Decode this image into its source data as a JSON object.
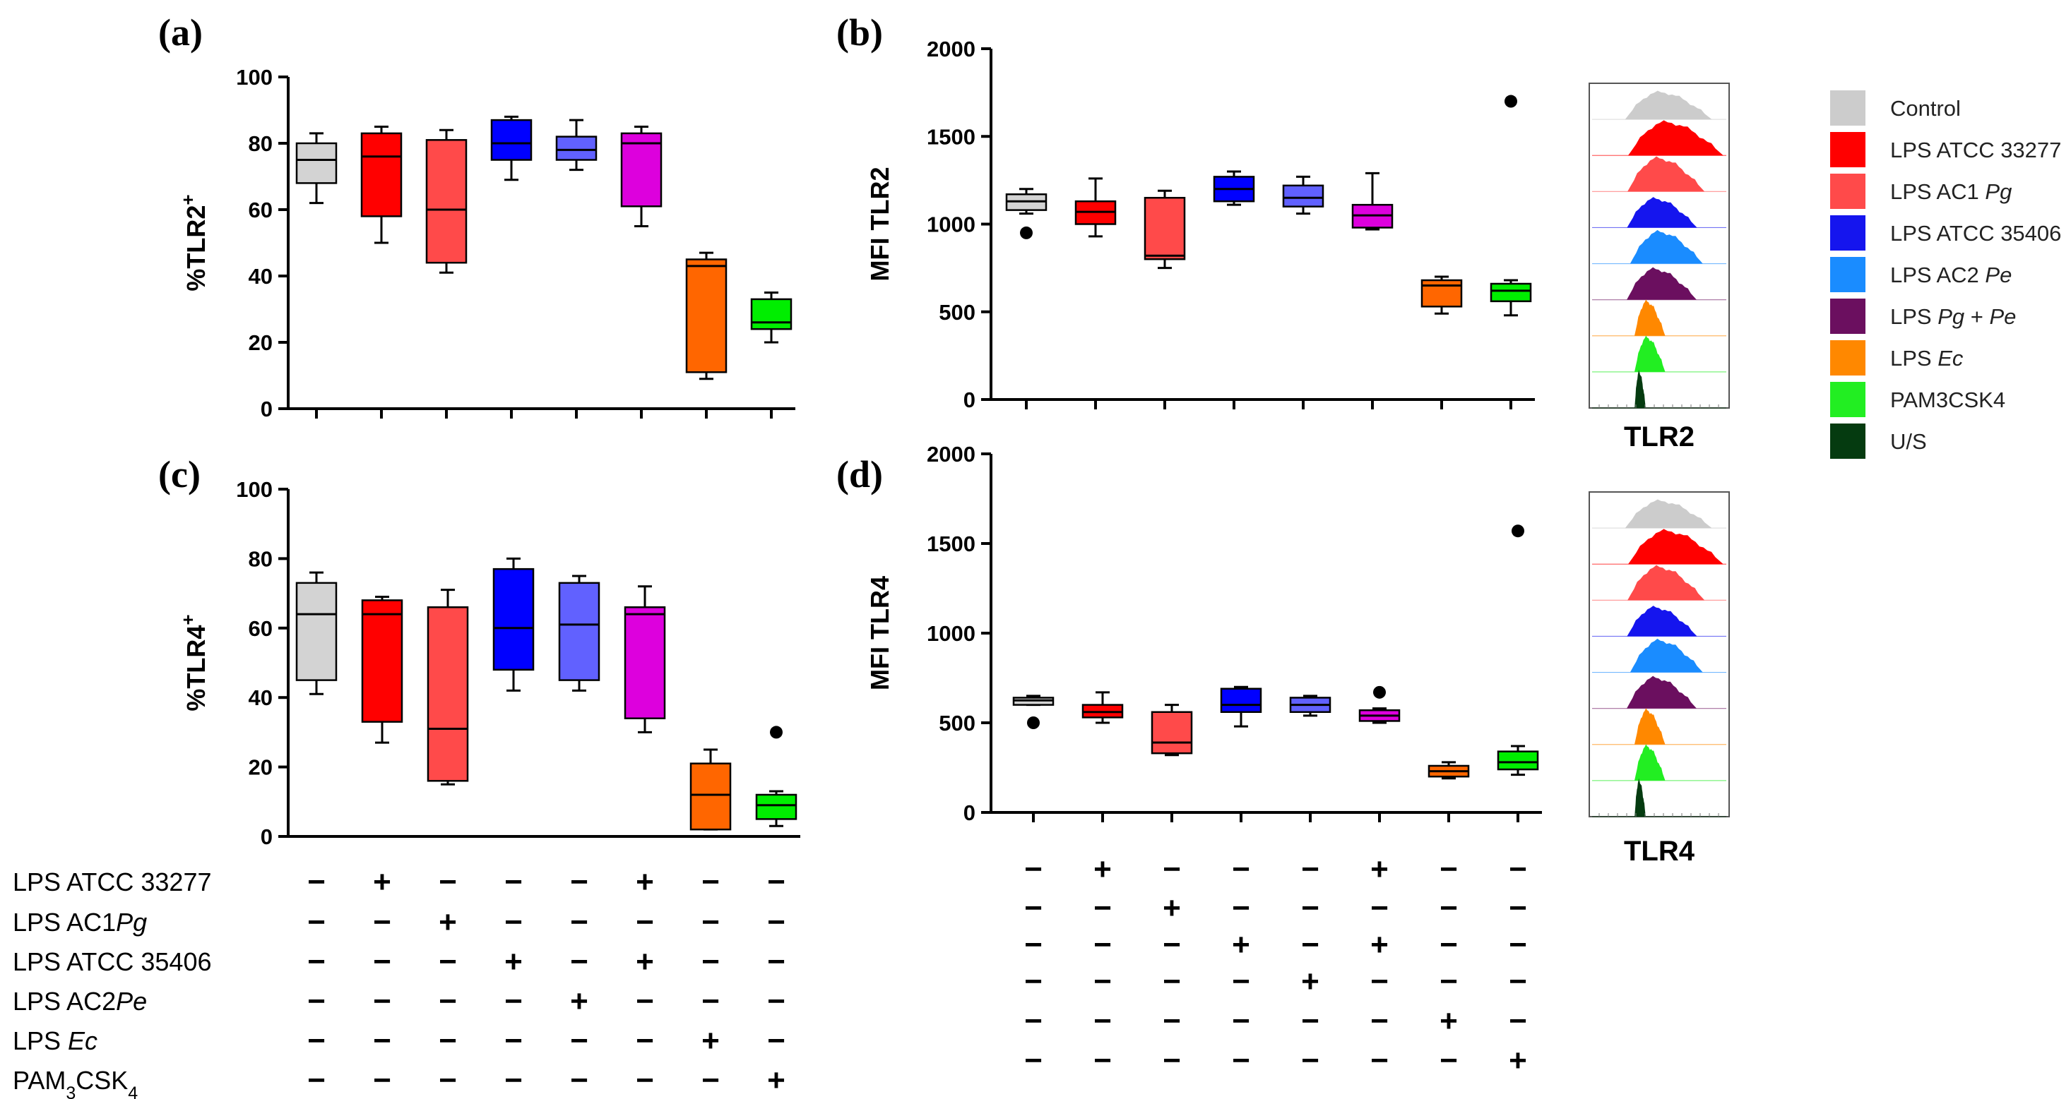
{
  "colors": {
    "control": "#d3d3d3",
    "lps_atcc_33277": "#ff0000",
    "lps_ac1_pg": "#ff4a4a",
    "lps_atcc_35406": "#0000ff",
    "lps_ac2_pe": "#6161ff",
    "lps_pg_pe": "#dd00dd",
    "lps_ec": "#ff6600",
    "pam3csk4": "#00ee00"
  },
  "chart_data": [
    {
      "id": "a",
      "panel_label": "(a)",
      "type": "box",
      "ylabel_main": "%TLR2",
      "ylabel_sup": "+",
      "ylim": [
        0,
        100
      ],
      "yticks": [
        0,
        20,
        40,
        60,
        80,
        100
      ],
      "series": [
        {
          "color": "#d3d3d3",
          "whisker_low": 62,
          "q1": 68,
          "median": 75,
          "q3": 80,
          "whisker_high": 83
        },
        {
          "color": "#ff0000",
          "whisker_low": 50,
          "q1": 58,
          "median": 76,
          "q3": 83,
          "whisker_high": 85
        },
        {
          "color": "#ff4a4a",
          "whisker_low": 41,
          "q1": 44,
          "median": 60,
          "q3": 81,
          "whisker_high": 84
        },
        {
          "color": "#0000ff",
          "whisker_low": 69,
          "q1": 75,
          "median": 80,
          "q3": 87,
          "whisker_high": 88
        },
        {
          "color": "#6161ff",
          "whisker_low": 72,
          "q1": 75,
          "median": 78,
          "q3": 82,
          "whisker_high": 87
        },
        {
          "color": "#dd00dd",
          "whisker_low": 55,
          "q1": 61,
          "median": 80,
          "q3": 83,
          "whisker_high": 85
        },
        {
          "color": "#ff6600",
          "whisker_low": 9,
          "q1": 11,
          "median": 43,
          "q3": 45,
          "whisker_high": 47
        },
        {
          "color": "#00ee00",
          "whisker_low": 20,
          "q1": 24,
          "median": 26,
          "q3": 33,
          "whisker_high": 35
        }
      ]
    },
    {
      "id": "b",
      "panel_label": "(b)",
      "type": "box",
      "ylabel_main": "MFI TLR2",
      "ylabel_sup": "",
      "ylim": [
        0,
        2000
      ],
      "yticks": [
        0,
        500,
        1000,
        1500,
        2000
      ],
      "series": [
        {
          "color": "#d3d3d3",
          "whisker_low": 1060,
          "q1": 1080,
          "median": 1130,
          "q3": 1170,
          "whisker_high": 1200,
          "outliers": [
            950
          ]
        },
        {
          "color": "#ff0000",
          "whisker_low": 930,
          "q1": 1000,
          "median": 1070,
          "q3": 1130,
          "whisker_high": 1260
        },
        {
          "color": "#ff4a4a",
          "whisker_low": 750,
          "q1": 800,
          "median": 820,
          "q3": 1150,
          "whisker_high": 1190
        },
        {
          "color": "#0000ff",
          "whisker_low": 1110,
          "q1": 1130,
          "median": 1200,
          "q3": 1270,
          "whisker_high": 1300
        },
        {
          "color": "#6161ff",
          "whisker_low": 1060,
          "q1": 1100,
          "median": 1150,
          "q3": 1220,
          "whisker_high": 1270
        },
        {
          "color": "#dd00dd",
          "whisker_low": 970,
          "q1": 980,
          "median": 1050,
          "q3": 1110,
          "whisker_high": 1290
        },
        {
          "color": "#ff6600",
          "whisker_low": 490,
          "q1": 530,
          "median": 650,
          "q3": 680,
          "whisker_high": 700
        },
        {
          "color": "#00ee00",
          "whisker_low": 480,
          "q1": 560,
          "median": 620,
          "q3": 660,
          "whisker_high": 680,
          "outliers": [
            1700
          ]
        }
      ]
    },
    {
      "id": "c",
      "panel_label": "(c)",
      "type": "box",
      "ylabel_main": "%TLR4",
      "ylabel_sup": "+",
      "ylim": [
        0,
        100
      ],
      "yticks": [
        0,
        20,
        40,
        60,
        80,
        100
      ],
      "series": [
        {
          "color": "#d3d3d3",
          "whisker_low": 41,
          "q1": 45,
          "median": 64,
          "q3": 73,
          "whisker_high": 76
        },
        {
          "color": "#ff0000",
          "whisker_low": 27,
          "q1": 33,
          "median": 64,
          "q3": 68,
          "whisker_high": 69
        },
        {
          "color": "#ff4a4a",
          "whisker_low": 15,
          "q1": 16,
          "median": 31,
          "q3": 66,
          "whisker_high": 71
        },
        {
          "color": "#0000ff",
          "whisker_low": 42,
          "q1": 48,
          "median": 60,
          "q3": 77,
          "whisker_high": 80
        },
        {
          "color": "#6161ff",
          "whisker_low": 42,
          "q1": 45,
          "median": 61,
          "q3": 73,
          "whisker_high": 75
        },
        {
          "color": "#dd00dd",
          "whisker_low": 30,
          "q1": 34,
          "median": 64,
          "q3": 66,
          "whisker_high": 72
        },
        {
          "color": "#ff6600",
          "whisker_low": 2,
          "q1": 2,
          "median": 12,
          "q3": 21,
          "whisker_high": 25
        },
        {
          "color": "#00ee00",
          "whisker_low": 3,
          "q1": 5,
          "median": 9,
          "q3": 12,
          "whisker_high": 13,
          "outliers": [
            30
          ]
        }
      ]
    },
    {
      "id": "d",
      "panel_label": "(d)",
      "type": "box",
      "ylabel_main": "MFI TLR4",
      "ylabel_sup": "",
      "ylim": [
        0,
        2000
      ],
      "yticks": [
        0,
        500,
        1000,
        1500,
        2000
      ],
      "series": [
        {
          "color": "#d3d3d3",
          "whisker_low": 600,
          "q1": 600,
          "median": 625,
          "q3": 640,
          "whisker_high": 650,
          "outliers": [
            500
          ]
        },
        {
          "color": "#ff0000",
          "whisker_low": 500,
          "q1": 530,
          "median": 560,
          "q3": 600,
          "whisker_high": 670
        },
        {
          "color": "#ff4a4a",
          "whisker_low": 320,
          "q1": 330,
          "median": 390,
          "q3": 560,
          "whisker_high": 600
        },
        {
          "color": "#0000ff",
          "whisker_low": 480,
          "q1": 560,
          "median": 600,
          "q3": 690,
          "whisker_high": 700
        },
        {
          "color": "#6161ff",
          "whisker_low": 540,
          "q1": 560,
          "median": 600,
          "q3": 640,
          "whisker_high": 650
        },
        {
          "color": "#dd00dd",
          "whisker_low": 500,
          "q1": 510,
          "median": 540,
          "q3": 570,
          "whisker_high": 580,
          "outliers": [
            670
          ]
        },
        {
          "color": "#ff6600",
          "whisker_low": 190,
          "q1": 200,
          "median": 230,
          "q3": 260,
          "whisker_high": 280
        },
        {
          "color": "#00ee00",
          "whisker_low": 210,
          "q1": 240,
          "median": 280,
          "q3": 340,
          "whisker_high": 370,
          "outliers": [
            1570
          ]
        }
      ]
    }
  ],
  "conditions": {
    "labels": [
      [
        "LPS ATCC 33277"
      ],
      [
        "LPS AC1",
        {
          "i": "Pg"
        }
      ],
      [
        "LPS ATCC 35406"
      ],
      [
        "LPS AC2",
        {
          "i": "Pe"
        }
      ],
      [
        "LPS ",
        {
          "i": "Ec"
        }
      ],
      [
        "PAM",
        {
          "sub": "3"
        },
        "CSK",
        {
          "sub": "4"
        }
      ]
    ],
    "matrix": [
      [
        "−",
        "+",
        "−",
        "−",
        "−",
        "+",
        "−",
        "−"
      ],
      [
        "−",
        "−",
        "+",
        "−",
        "−",
        "−",
        "−",
        "−"
      ],
      [
        "−",
        "−",
        "−",
        "+",
        "−",
        "+",
        "−",
        "−"
      ],
      [
        "−",
        "−",
        "−",
        "−",
        "+",
        "−",
        "−",
        "−"
      ],
      [
        "−",
        "−",
        "−",
        "−",
        "−",
        "−",
        "+",
        "−"
      ],
      [
        "−",
        "−",
        "−",
        "−",
        "−",
        "−",
        "−",
        "+"
      ]
    ]
  },
  "histograms": {
    "tlr2_label": "TLR2",
    "tlr4_label": "TLR4",
    "colors": [
      "#cccccc",
      "#ff0000",
      "#ff4a4a",
      "#1515ee",
      "#1a8cff",
      "#6b0f5f",
      "#ff8800",
      "#22ee22",
      "#053b10"
    ]
  },
  "legend": [
    {
      "color": "#cccccc",
      "parts": [
        "Control"
      ]
    },
    {
      "color": "#ff0000",
      "parts": [
        "LPS ATCC 33277"
      ]
    },
    {
      "color": "#ff4a4a",
      "parts": [
        "LPS AC1 ",
        {
          "i": "Pg"
        }
      ]
    },
    {
      "color": "#1515ee",
      "parts": [
        "LPS ATCC 35406"
      ]
    },
    {
      "color": "#1a8cff",
      "parts": [
        "LPS AC2 ",
        {
          "i": "Pe"
        }
      ]
    },
    {
      "color": "#6b0f5f",
      "parts": [
        "LPS ",
        {
          "i": "Pg"
        },
        " + ",
        {
          "i": "Pe"
        }
      ]
    },
    {
      "color": "#ff8800",
      "parts": [
        "LPS ",
        {
          "i": "Ec"
        }
      ]
    },
    {
      "color": "#22ee22",
      "parts": [
        "PAM3CSK4"
      ]
    },
    {
      "color": "#053b10",
      "parts": [
        "U/S"
      ]
    }
  ]
}
